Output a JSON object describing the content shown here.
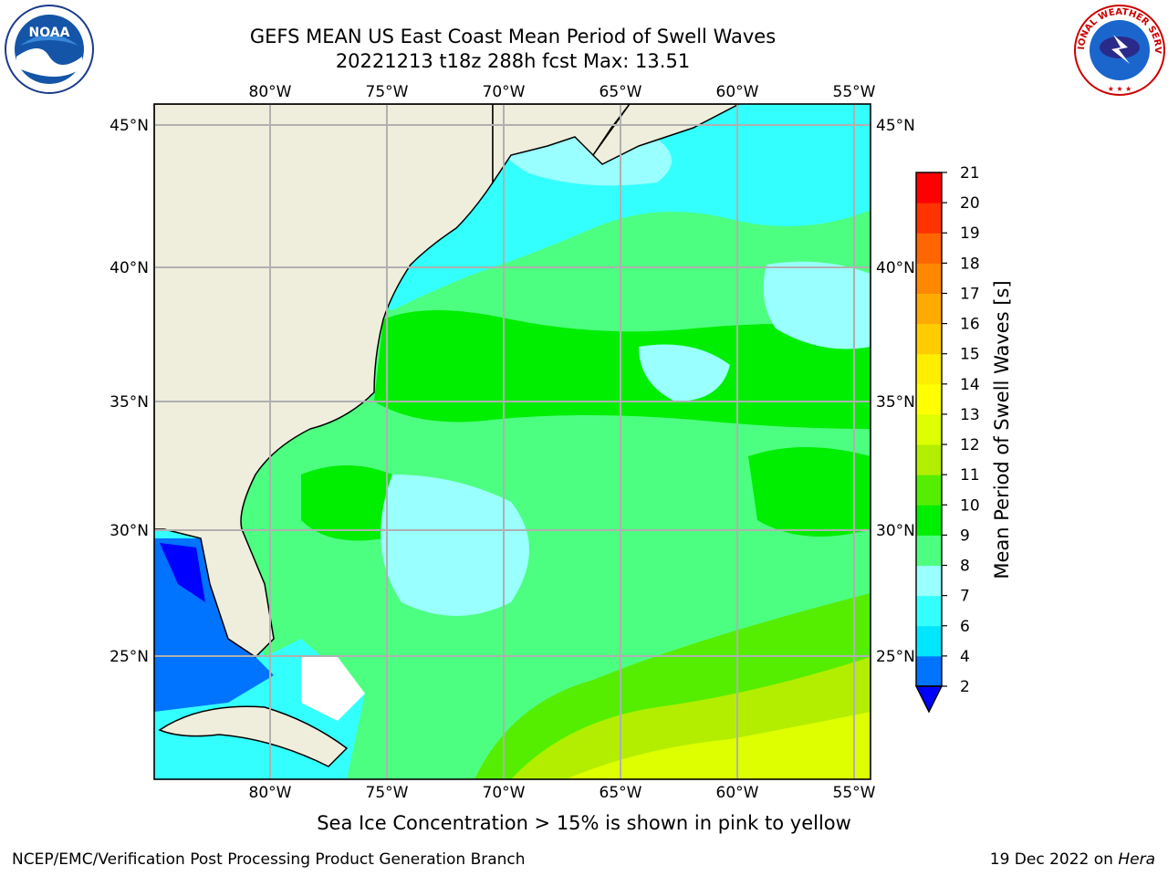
{
  "header": {
    "title_line1": "GEFS MEAN US East Coast Mean Period of Swell Waves",
    "title_line2": "20221213 t18z 288h fcst   Max: 13.51"
  },
  "map": {
    "lon_labels": [
      "80°W",
      "75°W",
      "70°W",
      "65°W",
      "60°W",
      "55°W"
    ],
    "lat_labels": [
      "45°N",
      "40°N",
      "35°N",
      "30°N",
      "25°N"
    ],
    "colors": {
      "land": "#efeedc",
      "gridline": "#b0b0b0"
    }
  },
  "colorbar": {
    "label": "Mean Period of Swell Waves [s]",
    "ticks": [
      "2",
      "4",
      "6",
      "7",
      "8",
      "9",
      "10",
      "11",
      "12",
      "13",
      "14",
      "15",
      "16",
      "17",
      "18",
      "19",
      "20",
      "21"
    ],
    "colors": [
      "#0073ff",
      "#00e6ff",
      "#33ffff",
      "#99ffff",
      "#4dff80",
      "#00ee00",
      "#55ee00",
      "#b3ee00",
      "#ddff00",
      "#ffff00",
      "#ffee00",
      "#ffcc00",
      "#ffaa00",
      "#ff8800",
      "#ff6600",
      "#ff3300",
      "#ff0000"
    ],
    "extend_color": "#0000ff"
  },
  "footer": {
    "note": "Sea Ice Concentration > 15% is shown in pink to yellow",
    "left": "NCEP/EMC/Verification Post Processing Product Generation Branch",
    "right_date": "19 Dec 2022 on ",
    "right_host": "Hera"
  },
  "logos": {
    "noaa_text": "NOAA",
    "nws_text": "NATIONAL WEATHER SERVICE"
  }
}
